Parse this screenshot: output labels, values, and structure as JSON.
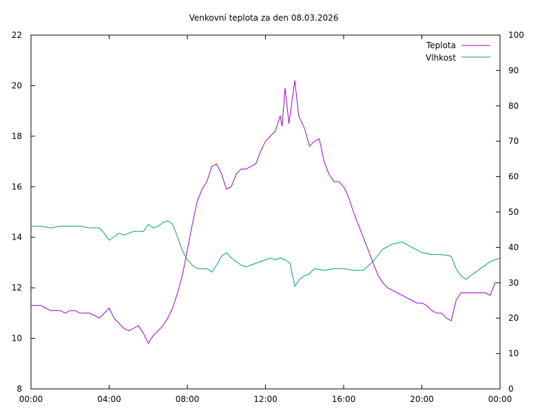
{
  "chart_data": {
    "type": "line",
    "title": "Venkovní teplota za den 08.03.2026",
    "grid": false,
    "legend_placement": "top-right",
    "x_ticks": [
      "00:00",
      "04:00",
      "08:00",
      "12:00",
      "16:00",
      "20:00",
      "00:00"
    ],
    "xlim_hours": [
      0,
      24
    ],
    "y_left": {
      "ylim": [
        8,
        22
      ],
      "ticks": [
        "8",
        "10",
        "12",
        "14",
        "16",
        "18",
        "20",
        "22"
      ]
    },
    "y_right": {
      "ylim": [
        0,
        100
      ],
      "ticks": [
        "0",
        "10",
        "20",
        "30",
        "40",
        "50",
        "60",
        "70",
        "80",
        "90",
        "100"
      ]
    },
    "series": [
      {
        "name": "Teplota",
        "axis": "left",
        "color": "#9400d3",
        "x_hours": [
          0,
          0.5,
          0.75,
          1,
          1.25,
          1.5,
          1.75,
          2,
          2.25,
          2.5,
          2.75,
          3,
          3.25,
          3.5,
          3.75,
          4,
          4.25,
          4.5,
          4.75,
          5,
          5.25,
          5.5,
          5.75,
          6,
          6.25,
          6.5,
          6.75,
          7,
          7.25,
          7.5,
          7.75,
          8,
          8.25,
          8.5,
          8.75,
          9,
          9.25,
          9.5,
          9.75,
          10,
          10.25,
          10.5,
          10.75,
          11,
          11.25,
          11.5,
          11.75,
          12,
          12.25,
          12.5,
          12.75,
          12.85,
          13,
          13.2,
          13.5,
          13.7,
          14,
          14.25,
          14.5,
          14.75,
          15,
          15.25,
          15.5,
          15.75,
          16,
          16.25,
          16.5,
          16.75,
          17,
          17.25,
          17.5,
          17.75,
          18,
          18.25,
          18.5,
          18.75,
          19,
          19.25,
          19.5,
          19.75,
          20,
          20.25,
          20.5,
          20.75,
          21,
          21.25,
          21.5,
          21.75,
          22,
          22.25,
          22.5,
          22.75,
          23,
          23.25,
          23.5,
          23.75,
          24
        ],
        "values": [
          11.3,
          11.3,
          11.2,
          11.1,
          11.1,
          11.1,
          11.0,
          11.1,
          11.1,
          11.0,
          11.0,
          11.0,
          10.9,
          10.8,
          11.0,
          11.2,
          10.8,
          10.6,
          10.4,
          10.3,
          10.4,
          10.5,
          10.2,
          9.8,
          10.1,
          10.3,
          10.5,
          10.8,
          11.2,
          11.8,
          12.5,
          13.5,
          14.5,
          15.4,
          15.9,
          16.2,
          16.8,
          16.9,
          16.5,
          15.9,
          16.0,
          16.5,
          16.7,
          16.7,
          16.8,
          16.9,
          17.4,
          17.8,
          18.0,
          18.2,
          18.8,
          18.4,
          19.9,
          18.5,
          20.2,
          18.8,
          18.3,
          17.6,
          17.8,
          17.9,
          17.0,
          16.5,
          16.2,
          16.2,
          16.0,
          15.6,
          15.0,
          14.5,
          14.0,
          13.5,
          13.0,
          12.5,
          12.2,
          12.0,
          11.9,
          11.8,
          11.7,
          11.6,
          11.5,
          11.4,
          11.4,
          11.3,
          11.1,
          11.0,
          11.0,
          10.8,
          10.7,
          11.5,
          11.8,
          11.8,
          11.8,
          11.8,
          11.8,
          11.8,
          11.7,
          12.2,
          12.2
        ]
      },
      {
        "name": "Vlhkost",
        "axis": "right",
        "color": "#009e73",
        "x_hours": [
          0,
          0.5,
          1,
          1.5,
          2,
          2.5,
          3,
          3.5,
          3.75,
          4,
          4.25,
          4.5,
          4.75,
          5,
          5.25,
          5.5,
          5.75,
          6,
          6.25,
          6.5,
          6.75,
          7,
          7.25,
          7.5,
          7.75,
          8,
          8.25,
          8.5,
          9,
          9.25,
          9.5,
          9.75,
          10,
          10.25,
          10.5,
          10.75,
          11,
          11.25,
          11.5,
          11.75,
          12,
          12.25,
          12.5,
          12.75,
          13,
          13.25,
          13.5,
          13.75,
          14,
          14.25,
          14.5,
          15,
          15.5,
          16,
          16.5,
          17,
          17.5,
          18,
          18.5,
          19,
          19.5,
          20,
          20.5,
          21,
          21.5,
          21.75,
          22,
          22.25,
          22.5,
          23,
          23.5,
          24
        ],
        "values": [
          46,
          46,
          45.5,
          46,
          46,
          46,
          45.5,
          45.5,
          44,
          42,
          43,
          44,
          43.5,
          44,
          44.5,
          44.5,
          44.5,
          46.5,
          45.5,
          46,
          47,
          47.5,
          46.5,
          43,
          39,
          36.5,
          35,
          34,
          34,
          33,
          35,
          37.5,
          38.5,
          37,
          36,
          35,
          34.5,
          35,
          35.5,
          36,
          36.5,
          37,
          36.5,
          37,
          36.5,
          35.5,
          29,
          31,
          32,
          32.5,
          34,
          33.5,
          34,
          34,
          33.5,
          33.5,
          36,
          39.5,
          41,
          41.5,
          40,
          38.5,
          38,
          38,
          37.5,
          34,
          32,
          31,
          32,
          34,
          36,
          37
        ]
      }
    ]
  }
}
